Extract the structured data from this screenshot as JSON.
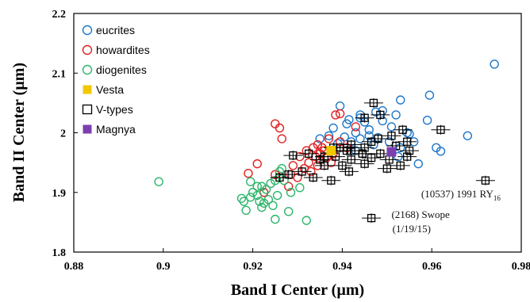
{
  "chart_data": {
    "type": "scatter",
    "xlabel": "Band I Center (µm)",
    "ylabel": "Band II Center (µm)",
    "xlim": [
      0.88,
      0.98
    ],
    "ylim": [
      1.8,
      2.2
    ],
    "x_ticks": [
      "0.88",
      "0.9",
      "0.92",
      "0.94",
      "0.96",
      "0.98"
    ],
    "y_ticks": [
      "1.8",
      "1.9",
      "2",
      "2.1",
      "2.2"
    ],
    "grid": false,
    "legend_position": "top-left",
    "series": [
      {
        "name": "eucrites",
        "marker": "circle-open",
        "color": "#1f77c8",
        "points": [
          [
            0.974,
            2.115
          ],
          [
            0.9595,
            2.063
          ],
          [
            0.953,
            2.055
          ],
          [
            0.959,
            2.021
          ],
          [
            0.962,
            1.969
          ],
          [
            0.968,
            1.995
          ],
          [
            0.961,
            1.975
          ],
          [
            0.957,
            1.948
          ],
          [
            0.949,
            2.037
          ],
          [
            0.9475,
            2.035
          ],
          [
            0.952,
            2.03
          ],
          [
            0.944,
            2.025
          ],
          [
            0.941,
            2.015
          ],
          [
            0.9395,
            2.045
          ],
          [
            0.946,
            2.005
          ],
          [
            0.951,
            2.01
          ],
          [
            0.955,
            1.998
          ],
          [
            0.948,
            1.992
          ],
          [
            0.943,
            2.0
          ],
          [
            0.937,
            1.995
          ],
          [
            0.945,
            2.018
          ],
          [
            0.9505,
            1.985
          ],
          [
            0.953,
            1.975
          ],
          [
            0.956,
            1.985
          ],
          [
            0.942,
            1.985
          ],
          [
            0.938,
            2.008
          ],
          [
            0.9405,
            1.993
          ],
          [
            0.947,
            1.98
          ],
          [
            0.944,
            2.03
          ],
          [
            0.9415,
            2.022
          ],
          [
            0.949,
            2.02
          ],
          [
            0.943,
            1.97
          ],
          [
            0.935,
            1.99
          ],
          [
            0.9525,
            1.96
          ],
          [
            0.946,
            1.995
          ],
          [
            0.939,
            1.982
          ],
          [
            0.9545,
            2.0
          ],
          [
            0.944,
            1.99
          ]
        ]
      },
      {
        "name": "howardites",
        "marker": "circle-open",
        "color": "#e02020",
        "points": [
          [
            0.925,
            2.015
          ],
          [
            0.926,
            2.008
          ],
          [
            0.9265,
            1.99
          ],
          [
            0.9385,
            2.03
          ],
          [
            0.9395,
            2.032
          ],
          [
            0.921,
            1.948
          ],
          [
            0.919,
            1.932
          ],
          [
            0.925,
            1.93
          ],
          [
            0.928,
            1.91
          ],
          [
            0.93,
            1.925
          ],
          [
            0.9325,
            1.95
          ],
          [
            0.934,
            1.96
          ],
          [
            0.935,
            1.965
          ],
          [
            0.936,
            1.97
          ],
          [
            0.9345,
            1.945
          ],
          [
            0.933,
            1.935
          ],
          [
            0.9355,
            1.975
          ],
          [
            0.932,
            1.97
          ],
          [
            0.938,
            1.965
          ],
          [
            0.9365,
            1.958
          ],
          [
            0.9305,
            1.96
          ],
          [
            0.9315,
            1.94
          ],
          [
            0.9335,
            1.975
          ],
          [
            0.937,
            1.99
          ],
          [
            0.9395,
            1.985
          ],
          [
            0.941,
            1.975
          ],
          [
            0.943,
            2.01
          ],
          [
            0.929,
            1.945
          ],
          [
            0.9285,
            1.93
          ],
          [
            0.9375,
            1.95
          ],
          [
            0.9345,
            1.98
          ],
          [
            0.9225,
            1.9
          ]
        ]
      },
      {
        "name": "diogenites",
        "marker": "circle-open",
        "color": "#2db56a",
        "points": [
          [
            0.899,
            1.918
          ],
          [
            0.9175,
            1.89
          ],
          [
            0.918,
            1.885
          ],
          [
            0.9195,
            1.892
          ],
          [
            0.92,
            1.9
          ],
          [
            0.921,
            1.895
          ],
          [
            0.9215,
            1.885
          ],
          [
            0.922,
            1.91
          ],
          [
            0.923,
            1.905
          ],
          [
            0.924,
            1.915
          ],
          [
            0.925,
            1.92
          ],
          [
            0.926,
            1.935
          ],
          [
            0.9265,
            1.94
          ],
          [
            0.9245,
            1.878
          ],
          [
            0.922,
            1.875
          ],
          [
            0.9185,
            1.87
          ],
          [
            0.925,
            1.855
          ],
          [
            0.928,
            1.868
          ],
          [
            0.932,
            1.853
          ],
          [
            0.9305,
            1.908
          ],
          [
            0.9285,
            1.9
          ],
          [
            0.927,
            1.92
          ],
          [
            0.9235,
            1.888
          ],
          [
            0.921,
            1.91
          ],
          [
            0.9195,
            1.918
          ],
          [
            0.9255,
            1.895
          ],
          [
            0.9225,
            1.882
          ]
        ]
      },
      {
        "name": "Vesta",
        "marker": "square-filled",
        "color": "#f2c800",
        "points": [
          [
            0.9375,
            1.97
          ]
        ]
      },
      {
        "name": "V-types",
        "marker": "square-open",
        "color": "#000000",
        "error_bars": true,
        "points": [
          [
            0.947,
            2.05
          ],
          [
            0.9485,
            2.03
          ],
          [
            0.945,
            2.025
          ],
          [
            0.9535,
            2.005
          ],
          [
            0.962,
            2.005
          ],
          [
            0.951,
            1.995
          ],
          [
            0.948,
            1.99
          ],
          [
            0.9465,
            1.985
          ],
          [
            0.9545,
            1.985
          ],
          [
            0.942,
            1.98
          ],
          [
            0.938,
            1.975
          ],
          [
            0.945,
            1.975
          ],
          [
            0.952,
            1.978
          ],
          [
            0.955,
            1.97
          ],
          [
            0.941,
            1.97
          ],
          [
            0.9445,
            1.965
          ],
          [
            0.9485,
            1.965
          ],
          [
            0.9385,
            1.96
          ],
          [
            0.935,
            1.955
          ],
          [
            0.942,
            1.955
          ],
          [
            0.9465,
            1.958
          ],
          [
            0.9545,
            1.96
          ],
          [
            0.9325,
            1.965
          ],
          [
            0.929,
            1.962
          ],
          [
            0.936,
            1.945
          ],
          [
            0.94,
            1.945
          ],
          [
            0.945,
            1.948
          ],
          [
            0.95,
            1.94
          ],
          [
            0.953,
            1.945
          ],
          [
            0.9415,
            1.935
          ],
          [
            0.9375,
            1.92
          ],
          [
            0.9335,
            1.925
          ],
          [
            0.931,
            1.935
          ],
          [
            0.928,
            1.93
          ],
          [
            0.926,
            1.925
          ],
          [
            0.9445,
            1.965
          ],
          [
            0.9505,
            1.955
          ],
          [
            0.942,
            1.97
          ],
          [
            0.9395,
            1.975
          ],
          [
            0.936,
            1.96
          ],
          [
            0.972,
            1.92
          ],
          [
            0.9465,
            1.857
          ]
        ]
      },
      {
        "name": "Magnya",
        "marker": "square-filled",
        "color": "#7b3fb0",
        "points": [
          [
            0.951,
            1.968
          ]
        ]
      }
    ],
    "annotations": [
      {
        "text": "(10537) 1991 RY",
        "subscript": "16",
        "x": 0.9665,
        "y": 1.892
      },
      {
        "text": "(2168) Swope",
        "x": 0.9575,
        "y": 1.857
      },
      {
        "text": "(1/19/15)",
        "x": 0.9555,
        "y": 1.833
      }
    ]
  }
}
